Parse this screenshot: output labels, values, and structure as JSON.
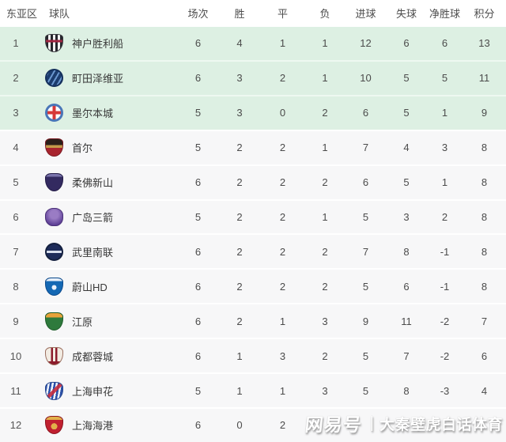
{
  "colors": {
    "qualification_zone_bg": "#ddf0e3",
    "row_bg": "#f7f7f8",
    "header_text": "#4d4d4d",
    "body_text": "#4b4b4b"
  },
  "table": {
    "headers": {
      "zone": "东亚区",
      "team": "球队",
      "played": "场次",
      "win": "胜",
      "draw": "平",
      "loss": "负",
      "gf": "进球",
      "ga": "失球",
      "gd": "净胜球",
      "pts": "积分"
    },
    "rows": [
      {
        "rank": "1",
        "team": "神户胜利船",
        "badge": "kobe",
        "badge_color": "#26262c",
        "zone": true,
        "played": "6",
        "win": "4",
        "draw": "1",
        "loss": "1",
        "gf": "12",
        "ga": "6",
        "gd": "6",
        "pts": "13"
      },
      {
        "rank": "2",
        "team": "町田泽维亚",
        "badge": "machida",
        "badge_color": "#1c3c6e",
        "zone": true,
        "played": "6",
        "win": "3",
        "draw": "2",
        "loss": "1",
        "gf": "10",
        "ga": "5",
        "gd": "5",
        "pts": "11"
      },
      {
        "rank": "3",
        "team": "墨尔本城",
        "badge": "melbourne",
        "badge_color": "#4a76b8",
        "zone": true,
        "played": "5",
        "win": "3",
        "draw": "0",
        "loss": "2",
        "gf": "6",
        "ga": "5",
        "gd": "1",
        "pts": "9"
      },
      {
        "rank": "4",
        "team": "首尔",
        "badge": "seoul",
        "badge_color": "#a8242e",
        "zone": false,
        "played": "5",
        "win": "2",
        "draw": "2",
        "loss": "1",
        "gf": "7",
        "ga": "4",
        "gd": "3",
        "pts": "8"
      },
      {
        "rank": "5",
        "team": "柔佛新山",
        "badge": "johor",
        "badge_color": "#332a60",
        "zone": false,
        "played": "6",
        "win": "2",
        "draw": "2",
        "loss": "2",
        "gf": "6",
        "ga": "5",
        "gd": "1",
        "pts": "8"
      },
      {
        "rank": "6",
        "team": "广岛三箭",
        "badge": "hiroshima",
        "badge_color": "#5e4096",
        "zone": false,
        "played": "5",
        "win": "2",
        "draw": "2",
        "loss": "1",
        "gf": "5",
        "ga": "3",
        "gd": "2",
        "pts": "8"
      },
      {
        "rank": "7",
        "team": "武里南联",
        "badge": "buriram",
        "badge_color": "#1e2c5a",
        "zone": false,
        "played": "6",
        "win": "2",
        "draw": "2",
        "loss": "2",
        "gf": "7",
        "ga": "8",
        "gd": "-1",
        "pts": "8"
      },
      {
        "rank": "8",
        "team": "蔚山HD",
        "badge": "ulsan",
        "badge_color": "#1468b4",
        "zone": false,
        "played": "6",
        "win": "2",
        "draw": "2",
        "loss": "2",
        "gf": "5",
        "ga": "6",
        "gd": "-1",
        "pts": "8"
      },
      {
        "rank": "9",
        "team": "江原",
        "badge": "gangwon",
        "badge_color": "#2e7a3c",
        "zone": false,
        "played": "6",
        "win": "2",
        "draw": "1",
        "loss": "3",
        "gf": "9",
        "ga": "11",
        "gd": "-2",
        "pts": "7"
      },
      {
        "rank": "10",
        "team": "成都蓉城",
        "badge": "chengdu",
        "badge_color": "#8c1c2c",
        "zone": false,
        "played": "6",
        "win": "1",
        "draw": "3",
        "loss": "2",
        "gf": "5",
        "ga": "7",
        "gd": "-2",
        "pts": "6"
      },
      {
        "rank": "11",
        "team": "上海申花",
        "badge": "shenhua",
        "badge_color": "#2a50a8",
        "zone": false,
        "played": "5",
        "win": "1",
        "draw": "1",
        "loss": "3",
        "gf": "5",
        "ga": "8",
        "gd": "-3",
        "pts": "4"
      },
      {
        "rank": "12",
        "team": "上海海港",
        "badge": "port",
        "badge_color": "#c02030",
        "zone": false,
        "played": "6",
        "win": "0",
        "draw": "2",
        "loss": "",
        "gf": "",
        "ga": "",
        "gd": "",
        "pts": ""
      }
    ]
  },
  "watermark": {
    "brand": "网易号",
    "separator": "|",
    "name": "大秦壁虎白话体育"
  }
}
